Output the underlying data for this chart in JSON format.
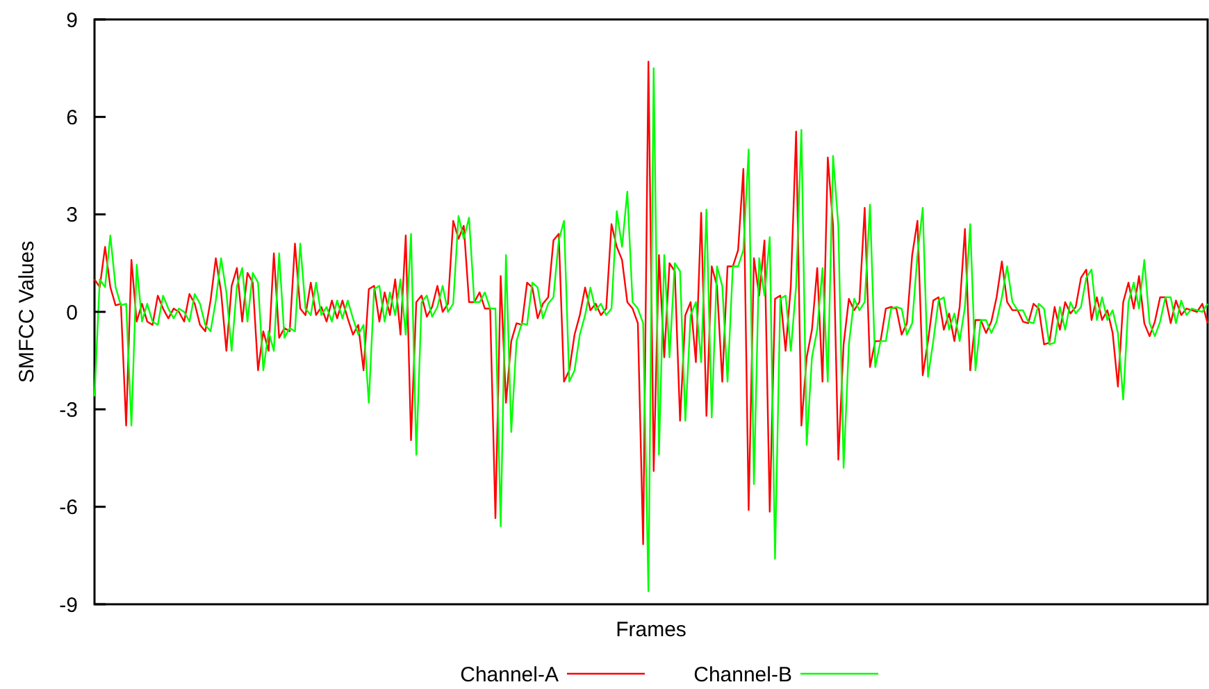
{
  "chart_data": {
    "type": "line",
    "xlabel": "Frames",
    "ylabel": "SMFCC Values",
    "categories": [
      null,
      null,
      null,
      null,
      null,
      null,
      null,
      null,
      null,
      null,
      null,
      null,
      null,
      null,
      null,
      null,
      null,
      null,
      null,
      null,
      null,
      null,
      null,
      null,
      null,
      null,
      null,
      null,
      null,
      null,
      null,
      null,
      null,
      null,
      null,
      null,
      null,
      null,
      null,
      null,
      null,
      null,
      null,
      null,
      null,
      null,
      null,
      null,
      null,
      null,
      null,
      null,
      null,
      null,
      null,
      null,
      null,
      null,
      null,
      null,
      null,
      null,
      null,
      null,
      null,
      null,
      null,
      null,
      null,
      null,
      null,
      null,
      null,
      null,
      null,
      null,
      null,
      null,
      null,
      null,
      null,
      null,
      null,
      null,
      null,
      null,
      null,
      null,
      null,
      null,
      null,
      null,
      null,
      null,
      null,
      null,
      null,
      null,
      null,
      null,
      null,
      null,
      null,
      null,
      null,
      null,
      null,
      null,
      null,
      null,
      null,
      null,
      null,
      null,
      null,
      null,
      null,
      null,
      null,
      null,
      null,
      null,
      null,
      null,
      null,
      null,
      null,
      null,
      null,
      null,
      null,
      null,
      null,
      null,
      null,
      null,
      null,
      null,
      null,
      null,
      null,
      null,
      null,
      null,
      null,
      null,
      null,
      null,
      null,
      null,
      null,
      null,
      null,
      null,
      null,
      null,
      null,
      null,
      null,
      null,
      null,
      null,
      null,
      null,
      null,
      null,
      null,
      null,
      null,
      null,
      null,
      null,
      null,
      null,
      null,
      null,
      null,
      null,
      null,
      null,
      null,
      null,
      null,
      null,
      null,
      null,
      null,
      null,
      null,
      null,
      null,
      null,
      null,
      null,
      null,
      null,
      null,
      null,
      null,
      null,
      null,
      null,
      null,
      null,
      null,
      null,
      null,
      null,
      null,
      null,
      null,
      null
    ],
    "series": [
      {
        "name": "Channel-A",
        "color": "#ff0000",
        "values": [
          1.0,
          0.76,
          2.0,
          0.76,
          0.2,
          0.25,
          -3.5,
          1.6,
          -0.3,
          0.25,
          -0.3,
          -0.4,
          0.5,
          0.1,
          -0.2,
          0.1,
          0,
          -0.3,
          0.55,
          0.25,
          -0.4,
          -0.6,
          0.35,
          1.65,
          0.6,
          -1.2,
          0.8,
          1.35,
          -0.3,
          1.2,
          0.9,
          -1.8,
          -0.6,
          -1.2,
          1.8,
          -0.8,
          -0.5,
          -0.6,
          2.1,
          0.1,
          -0.1,
          0.9,
          -0.1,
          0.15,
          -0.3,
          0.35,
          -0.2,
          0.35,
          -0.2,
          -0.7,
          -0.4,
          -1.8,
          0.7,
          0.8,
          -0.3,
          0.6,
          -0.1,
          1.0,
          -0.7,
          2.35,
          -3.95,
          0.3,
          0.5,
          -0.15,
          0.15,
          0.8,
          0,
          0.25,
          2.8,
          2.25,
          2.65,
          0.3,
          0.3,
          0.6,
          0.1,
          0.1,
          -6.35,
          1.1,
          -2.8,
          -0.9,
          -0.35,
          -0.4,
          0.9,
          0.75,
          -0.2,
          0.25,
          0.45,
          2.2,
          2.4,
          -2.15,
          -1.8,
          -0.7,
          -0.1,
          0.75,
          0.05,
          0.25,
          -0.1,
          0.1,
          2.7,
          2.0,
          1.6,
          0.3,
          0.1,
          -0.35,
          -7.15,
          7.7,
          -4.9,
          1.75,
          -1.4,
          1.5,
          1.25,
          -3.35,
          -0.1,
          0.3,
          -1.55,
          3.05,
          -3.2,
          1.4,
          0.8,
          -2.15,
          1.4,
          1.4,
          1.9,
          4.4,
          -6.1,
          1.65,
          0.5,
          2.2,
          -6.15,
          0.4,
          0.5,
          -1.2,
          0.8,
          5.55,
          -3.5,
          -1.4,
          -0.55,
          1.35,
          -2.15,
          4.75,
          2.65,
          -4.55,
          -1.0,
          0.4,
          0.05,
          0.3,
          3.2,
          -1.7,
          -0.9,
          -0.9,
          0.1,
          0.15,
          0.1,
          -0.7,
          -0.35,
          1.75,
          2.8,
          -1.95,
          -0.9,
          0.35,
          0.45,
          -0.55,
          -0.05,
          -0.9,
          0.15,
          2.55,
          -1.8,
          -0.25,
          -0.25,
          -0.65,
          -0.3,
          0.45,
          1.55,
          0.3,
          0.05,
          0.05,
          -0.3,
          -0.35,
          0.25,
          0.1,
          -1.0,
          -0.95,
          0.15,
          -0.55,
          0.3,
          -0.05,
          0.15,
          1.05,
          1.3,
          -0.25,
          0.45,
          -0.25,
          0.05,
          -0.65,
          -2.3,
          0.3,
          0.9,
          0.1,
          1.1,
          -0.35,
          -0.75,
          -0.3,
          0.45,
          0.45,
          -0.35,
          0.35,
          -0.1,
          0.1,
          0.05,
          0.0,
          0.25,
          -0.35
        ]
      },
      {
        "name": "Channel-B",
        "color": "#00ff00",
        "values": [
          -2.6,
          1.0,
          0.76,
          2.35,
          0.76,
          0.2,
          0.25,
          -3.5,
          1.45,
          -0.3,
          0.25,
          -0.3,
          -0.4,
          0.5,
          0.1,
          -0.2,
          0.1,
          0,
          -0.3,
          0.55,
          0.25,
          -0.4,
          -0.6,
          0.35,
          1.65,
          0.6,
          -1.2,
          0.8,
          1.35,
          -0.3,
          1.2,
          0.9,
          -1.8,
          -0.6,
          -1.2,
          1.8,
          -0.8,
          -0.5,
          -0.6,
          2.1,
          0.1,
          -0.1,
          0.9,
          -0.1,
          0.15,
          -0.3,
          0.35,
          -0.2,
          0.35,
          -0.2,
          -0.7,
          -0.4,
          -2.8,
          0.7,
          0.8,
          -0.3,
          0.6,
          -0.1,
          1.0,
          -0.7,
          2.4,
          -4.4,
          0.3,
          0.5,
          -0.15,
          0.15,
          0.8,
          0,
          0.25,
          2.95,
          2.25,
          2.9,
          0.3,
          0.3,
          0.6,
          0.1,
          0.1,
          -6.6,
          1.75,
          -3.7,
          -0.9,
          -0.35,
          -0.4,
          0.9,
          0.75,
          -0.2,
          0.25,
          0.45,
          2.2,
          2.8,
          -2.15,
          -1.8,
          -0.7,
          -0.1,
          0.75,
          0.05,
          0.25,
          -0.1,
          0.1,
          3.1,
          2.0,
          3.7,
          0.3,
          0.1,
          -0.35,
          -8.6,
          7.5,
          -4.4,
          1.75,
          -1.4,
          1.5,
          1.25,
          -3.35,
          -0.1,
          0.3,
          -1.55,
          3.15,
          -3.25,
          1.4,
          0.8,
          -2.15,
          1.4,
          1.4,
          1.9,
          5.0,
          -5.3,
          1.65,
          0.5,
          2.3,
          -7.6,
          0.4,
          0.5,
          -1.2,
          0.8,
          5.6,
          -4.1,
          -1.4,
          -0.55,
          1.35,
          -2.15,
          4.8,
          2.65,
          -4.8,
          -1.0,
          0.4,
          0.05,
          0.3,
          3.3,
          -1.7,
          -0.9,
          -0.9,
          0.1,
          0.15,
          0.1,
          -0.7,
          -0.35,
          1.75,
          3.2,
          -2.0,
          -0.9,
          0.35,
          0.45,
          -0.55,
          -0.05,
          -0.9,
          0.15,
          2.7,
          -1.8,
          -0.25,
          -0.25,
          -0.65,
          -0.3,
          0.45,
          1.4,
          0.3,
          0.05,
          0.05,
          -0.3,
          -0.35,
          0.25,
          0.1,
          -1.0,
          -0.95,
          0.15,
          -0.55,
          0.3,
          -0.05,
          0.15,
          1.05,
          1.3,
          -0.25,
          0.45,
          -0.25,
          0.05,
          -0.65,
          -2.7,
          0.3,
          0.9,
          0.1,
          1.6,
          -0.35,
          -0.75,
          -0.3,
          0.45,
          0.45,
          -0.35,
          0.35,
          -0.1,
          0.1,
          0.05,
          0.0,
          0.25
        ]
      }
    ],
    "ylim": [
      -9,
      9
    ],
    "yticks": [
      -9,
      -6,
      -3,
      0,
      3,
      6,
      9
    ],
    "legend": "bottom",
    "marker": "none",
    "line_style": "solid"
  }
}
